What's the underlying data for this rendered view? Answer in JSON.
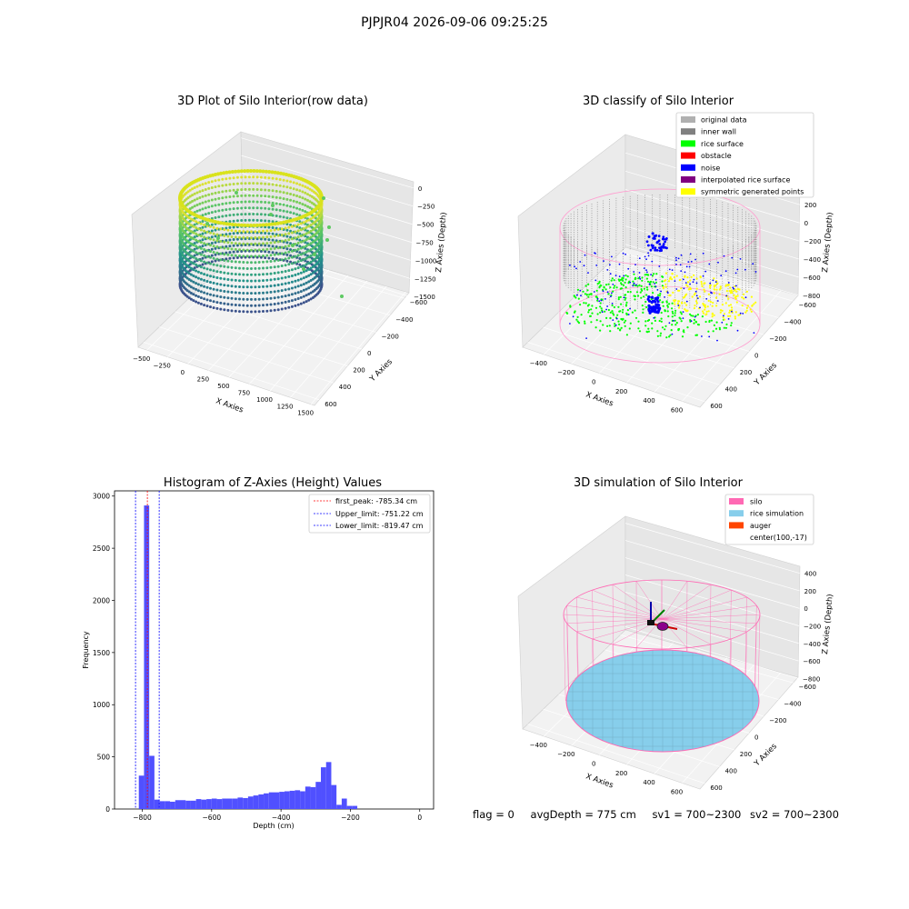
{
  "suptitle": "PJPJR04 2026-09-06 09:25:25",
  "footer": {
    "flag": "flag = 0",
    "avg_depth": "avgDepth = 775 cm",
    "sv1": "sv1 = 700~2300",
    "sv2": "sv2 = 700~2300"
  },
  "colors": {
    "original_data": "#b0b0b0",
    "inner_wall": "#808080",
    "rice_surface": "#00ff00",
    "obstacle": "#ff0000",
    "noise": "#0000ff",
    "interpolated_rice_surface": "#800080",
    "symmetric_generated_points": "#ffff00",
    "silo": "#ff69b4",
    "rice_simulation": "#87ceeb",
    "auger": "#ff4500",
    "histogram_bar": "#5050ff",
    "first_peak_line": "#ff0000",
    "limit_lines": "#0000ff"
  },
  "chart_data": [
    {
      "type": "scatter3d",
      "title": "3D Plot of Silo Interior(row data)",
      "xlabel": "X Axies",
      "ylabel": "Y Axies",
      "zlabel": "Z Axies (Depth)",
      "x_ticks": [
        "−500",
        "−250",
        "0",
        "250",
        "500",
        "750",
        "1000",
        "1250",
        "1500"
      ],
      "y_ticks": [
        "−600",
        "−400",
        "−200",
        "0",
        "200",
        "400",
        "600"
      ],
      "z_ticks": [
        "0",
        "−250",
        "−500",
        "−750",
        "−1000",
        "−1250",
        "−1500"
      ],
      "colormap": "viridis"
    },
    {
      "type": "scatter3d",
      "title": "3D classify of Silo Interior",
      "xlabel": "X Axies",
      "ylabel": "Y Axies",
      "zlabel": "Z Axies (Depth)",
      "x_ticks": [
        "−400",
        "−200",
        "0",
        "200",
        "400",
        "600"
      ],
      "y_ticks": [
        "−600",
        "−400",
        "−200",
        "0",
        "200",
        "400",
        "600"
      ],
      "z_ticks": [
        "200",
        "0",
        "−200",
        "−400",
        "−600",
        "−800"
      ],
      "legend": [
        "original data",
        "inner wall",
        "rice surface",
        "obstacle",
        "noise",
        "interpolated rice surface",
        "symmetric generated points"
      ],
      "legend_loc": "upper right"
    },
    {
      "type": "bar",
      "title": "Histogram of Z-Axies (Height) Values",
      "xlabel": "Depth (cm)",
      "ylabel": "Frequency",
      "xlim": [
        -880,
        40
      ],
      "ylim": [
        0,
        3050
      ],
      "x_ticks": [
        -800,
        -600,
        -400,
        -200,
        0
      ],
      "y_ticks": [
        0,
        500,
        1000,
        1500,
        2000,
        2500,
        3000
      ],
      "bin_width": 15,
      "bin_start": -810,
      "values": [
        320,
        2910,
        510,
        90,
        75,
        75,
        70,
        85,
        85,
        80,
        80,
        95,
        90,
        95,
        100,
        95,
        100,
        100,
        100,
        110,
        105,
        120,
        130,
        140,
        150,
        160,
        160,
        165,
        170,
        175,
        180,
        170,
        215,
        210,
        260,
        400,
        450,
        230,
        40,
        100,
        30,
        30
      ],
      "vlines": [
        {
          "label": "first_peak: -785.34 cm",
          "x": -785.34,
          "color": "#ff0000"
        },
        {
          "label": "Upper_limit: -751.22 cm",
          "x": -751.22,
          "color": "#0000ff"
        },
        {
          "label": "Lower_limit: -819.47 cm",
          "x": -819.47,
          "color": "#0000ff"
        }
      ],
      "legend_loc": "upper right"
    },
    {
      "type": "surface3d",
      "title": "3D simulation of Silo Interior",
      "xlabel": "X Axies",
      "ylabel": "Y Axies",
      "zlabel": "Z Axies (Depth)",
      "x_ticks": [
        "−400",
        "−200",
        "0",
        "200",
        "400",
        "600"
      ],
      "y_ticks": [
        "−600",
        "−400",
        "−200",
        "0",
        "200",
        "400",
        "600"
      ],
      "z_ticks": [
        "400",
        "200",
        "0",
        "−200",
        "−400",
        "−600",
        "−800"
      ],
      "legend": [
        "silo",
        "rice simulation",
        "auger",
        "center(100,-17)"
      ],
      "legend_loc": "upper right"
    }
  ]
}
